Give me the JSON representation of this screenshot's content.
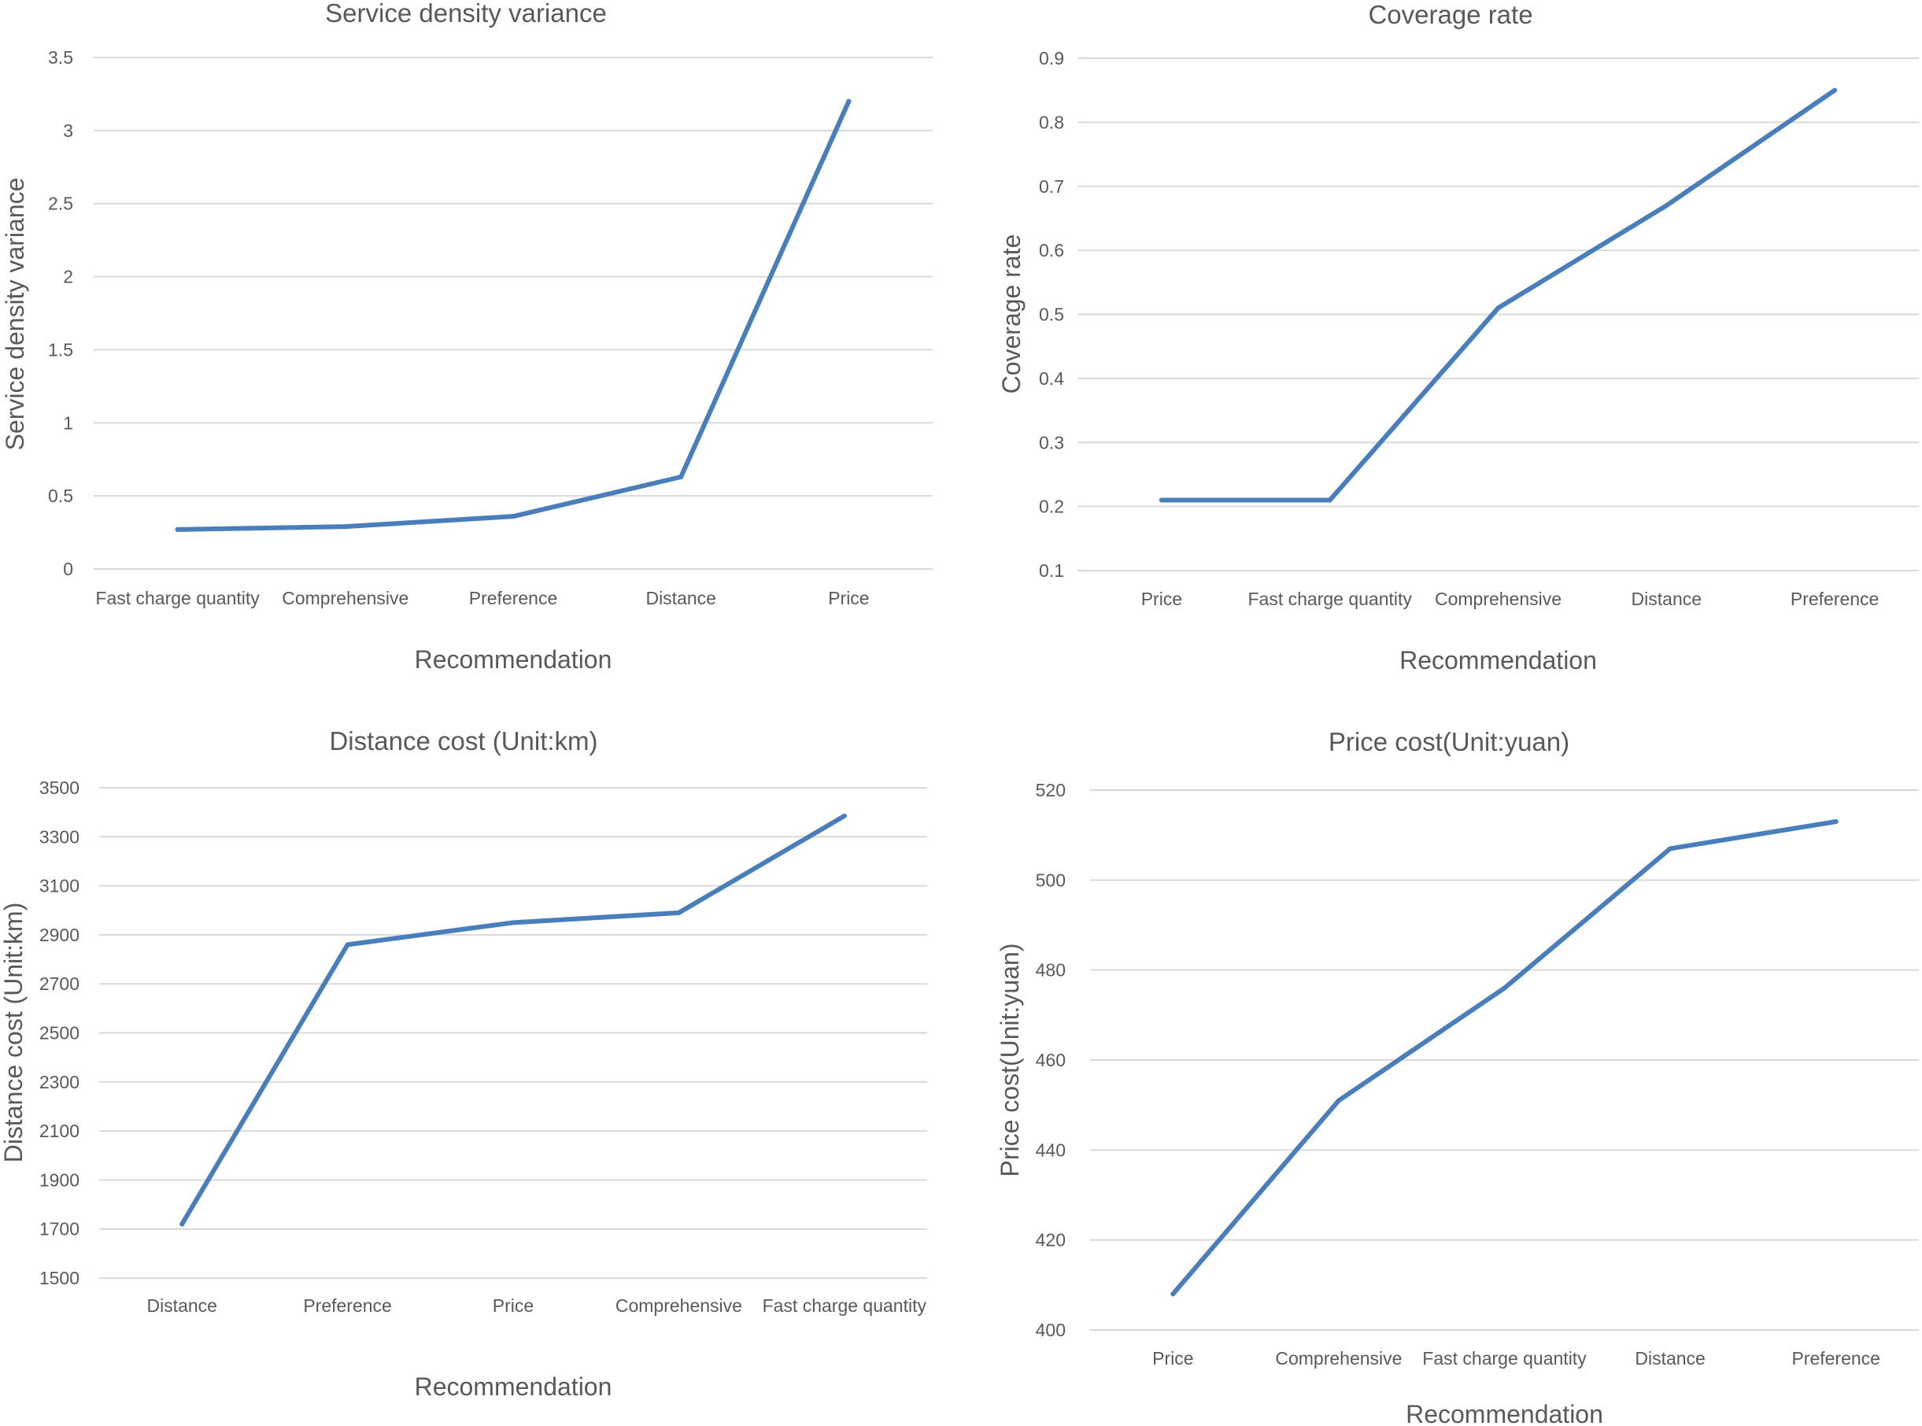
{
  "chart_data": [
    {
      "type": "line",
      "title": "Service density variance",
      "xlabel": "Recommendation",
      "ylabel": "Service density variance",
      "categories": [
        "Fast charge quantity",
        "Comprehensive",
        "Preference",
        "Distance",
        "Price"
      ],
      "values": [
        0.27,
        0.29,
        0.36,
        0.63,
        3.2
      ],
      "ylim": [
        0,
        3.5
      ],
      "yticks": [
        "0",
        "0.5",
        "1",
        "1.5",
        "2",
        "2.5",
        "3",
        "3.5"
      ],
      "grid": true,
      "color": "#4a7ebb"
    },
    {
      "type": "line",
      "title": "Coverage rate",
      "xlabel": "Recommendation",
      "ylabel": "Coverage rate",
      "categories": [
        "Price",
        "Fast charge quantity",
        "Comprehensive",
        "Distance",
        "Preference"
      ],
      "values": [
        0.21,
        0.21,
        0.51,
        0.67,
        0.85
      ],
      "ylim": [
        0.1,
        0.9
      ],
      "yticks": [
        "0.1",
        "0.2",
        "0.3",
        "0.4",
        "0.5",
        "0.6",
        "0.7",
        "0.8",
        "0.9"
      ],
      "grid": true,
      "color": "#4a7ebb"
    },
    {
      "type": "line",
      "title": "Distance cost (Unit:km)",
      "xlabel": "Recommendation",
      "ylabel": "Distance cost (Unit:km)",
      "categories": [
        "Distance",
        "Preference",
        "Price",
        "Comprehensive",
        "Fast charge quantity"
      ],
      "values": [
        1720,
        2860,
        2950,
        2990,
        3385
      ],
      "ylim": [
        1500,
        3500
      ],
      "yticks": [
        "1500",
        "1700",
        "1900",
        "2100",
        "2300",
        "2500",
        "2700",
        "2900",
        "3100",
        "3300",
        "3500"
      ],
      "grid": true,
      "color": "#4a7ebb"
    },
    {
      "type": "line",
      "title": "Price cost(Unit:yuan)",
      "xlabel": "Recommendation",
      "ylabel": "Price cost(Unit:yuan)",
      "categories": [
        "Price",
        "Comprehensive",
        "Fast charge quantity",
        "Distance",
        "Preference"
      ],
      "values": [
        408,
        451,
        476,
        507,
        513
      ],
      "ylim": [
        400,
        520
      ],
      "yticks": [
        "400",
        "420",
        "440",
        "460",
        "480",
        "500",
        "520"
      ],
      "grid": true,
      "color": "#4a7ebb"
    }
  ]
}
